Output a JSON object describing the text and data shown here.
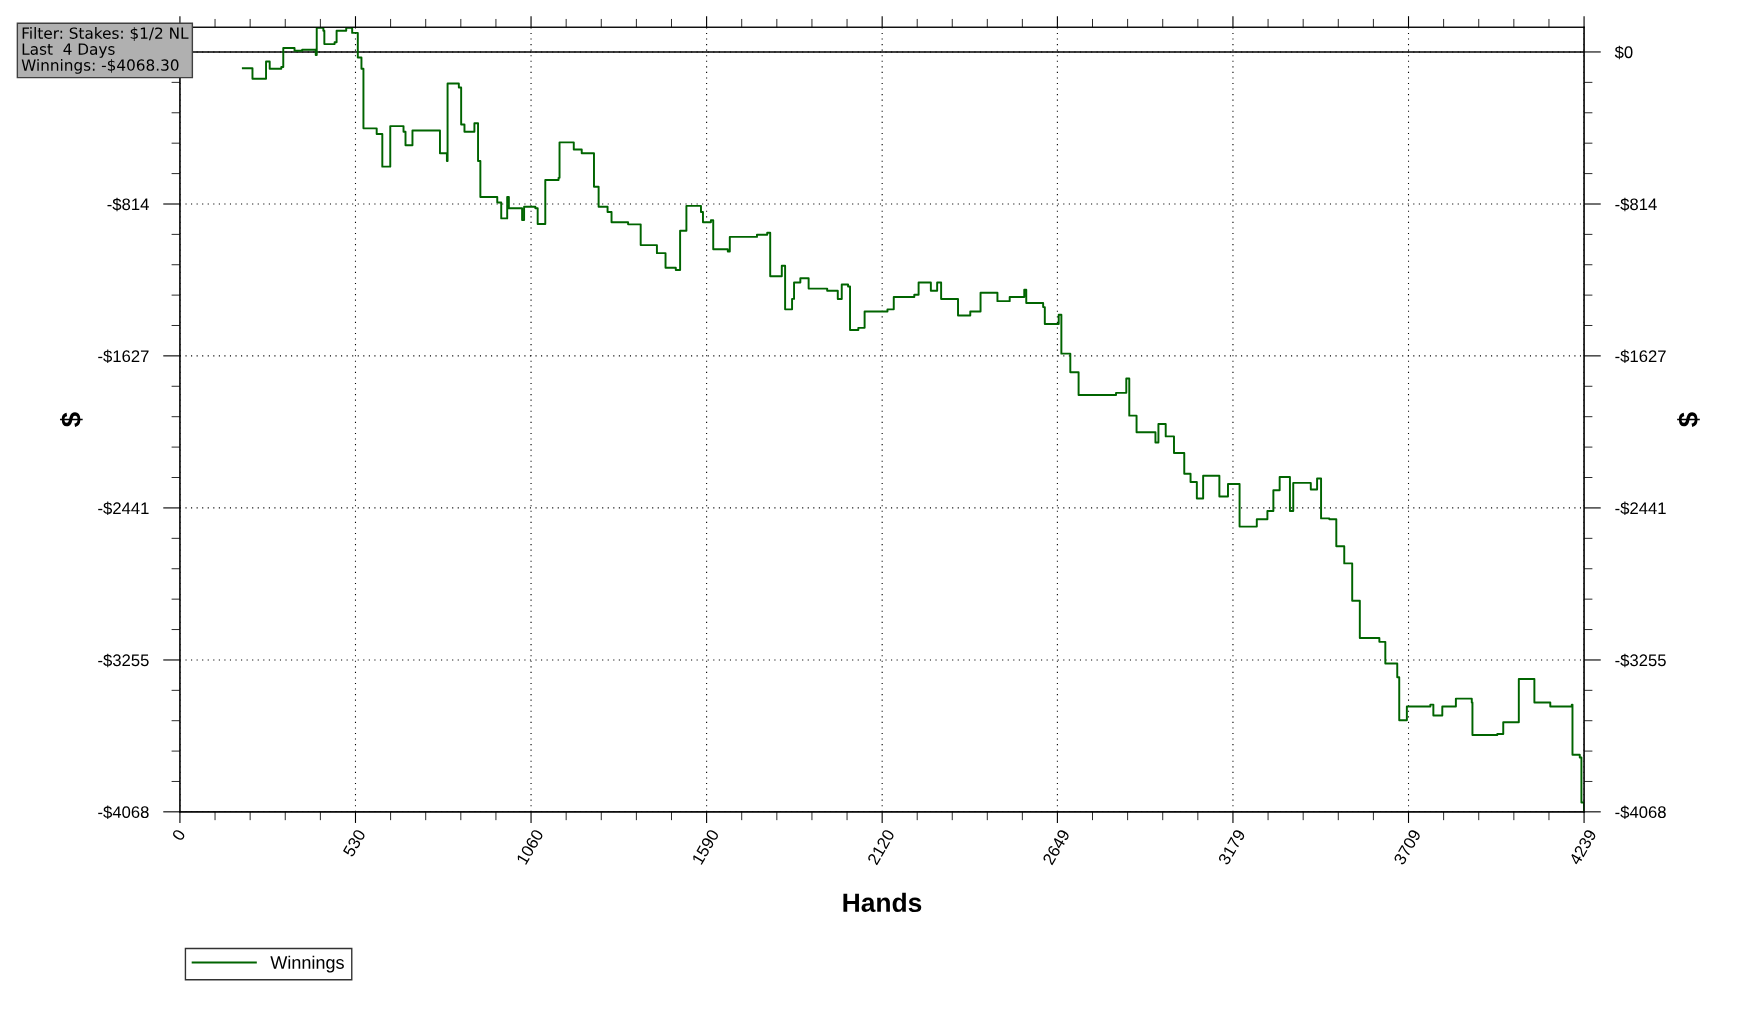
{
  "chart_data": {
    "type": "step",
    "xlabel": "Hands",
    "ylabel": "$",
    "y2label": "$",
    "annotations": [
      "Filter: Stakes: $1/2 NL",
      "Last  4 Days",
      "Winnings: -$4068.30"
    ],
    "xlim": [
      0,
      4239
    ],
    "xticks": [
      0,
      530,
      1060,
      1590,
      2120,
      2649,
      3179,
      3709,
      4239
    ],
    "ylim": [
      -4068,
      132
    ],
    "yticks": [
      {
        "value": 0,
        "label": null
      },
      {
        "value": -814,
        "label": "-$814"
      },
      {
        "value": -1627,
        "label": "-$1627"
      },
      {
        "value": -2441,
        "label": "-$2441"
      },
      {
        "value": -3255,
        "label": "-$3255"
      },
      {
        "value": -4068,
        "label": "-$4068"
      }
    ],
    "y2lim": [
      -4068,
      132
    ],
    "y2ticks": [
      {
        "value": 0,
        "label": "$0"
      },
      {
        "value": -814,
        "label": "-$814"
      },
      {
        "value": -1627,
        "label": "-$1627"
      },
      {
        "value": -2441,
        "label": "-$2441"
      },
      {
        "value": -3255,
        "label": "-$3255"
      },
      {
        "value": -4068,
        "label": "-$4068"
      }
    ],
    "grid": true,
    "legend": "bottom left",
    "marker": "none",
    "line_style": "solid",
    "ref_lines": [
      {
        "axis": "y",
        "value": 0,
        "color": "#000000",
        "line_style": "solid"
      }
    ],
    "series": [
      {
        "name": "Winnings",
        "color": "#006400",
        "x": [
          190,
          219,
          254,
          260,
          271,
          306,
          312,
          346,
          369,
          410,
          413,
          433,
          436,
          467,
          473,
          502,
          520,
          537,
          537,
          548,
          554,
          594,
          611,
          628,
          635,
          675,
          681,
          698,
          702,
          774,
          785,
          806,
          808,
          842,
          849,
          859,
          889,
          900,
          907,
          958,
          970,
          988,
          993,
          1033,
          1039,
          1073,
          1080,
          1097,
          1103,
          1143,
          1146,
          1189,
          1213,
          1242,
          1250,
          1264,
          1291,
          1303,
          1353,
          1391,
          1440,
          1466,
          1497,
          1510,
          1529,
          1573,
          1579,
          1603,
          1610,
          1654,
          1660,
          1742,
          1773,
          1782,
          1817,
          1827,
          1848,
          1854,
          1873,
          1898,
          1954,
          1986,
          1998,
          2017,
          2023,
          2048,
          2067,
          2136,
          2155,
          2217,
          2230,
          2267,
          2286,
          2298,
          2349,
          2386,
          2417,
          2468,
          2505,
          2549,
          2555,
          2606,
          2611,
          2643,
          2653,
          2661,
          2688,
          2713,
          2826,
          2857,
          2866,
          2888,
          2945,
          2954,
          2976,
          3001,
          3032,
          3051,
          3070,
          3089,
          3138,
          3164,
          3195,
          3199,
          3251,
          3283,
          3301,
          3320,
          3351,
          3361,
          3414,
          3433,
          3445,
          3470,
          3491,
          3515,
          3539,
          3562,
          3621,
          3639,
          3675,
          3681,
          3704,
          3775,
          3784,
          3805,
          3811,
          3852,
          3900,
          3902,
          3977,
          3995,
          4042,
          4042,
          4083,
          4089,
          4137,
          4202,
          4204,
          4226,
          4231,
          4239
        ],
        "values": [
          -87,
          -143,
          -143,
          -51,
          -90,
          -81,
          21,
          6,
          12,
          -16,
          129,
          114,
          42,
          52,
          114,
          129,
          102,
          93,
          -30,
          -90,
          -409,
          -439,
          -614,
          -614,
          -397,
          -427,
          -499,
          -499,
          -421,
          -421,
          -542,
          -584,
          -169,
          -190,
          -388,
          -427,
          -382,
          -584,
          -776,
          -806,
          -891,
          -776,
          -837,
          -900,
          -829,
          -837,
          -921,
          -921,
          -686,
          -674,
          -484,
          -522,
          -542,
          -542,
          -722,
          -829,
          -857,
          -912,
          -923,
          -1034,
          -1077,
          -1155,
          -1167,
          -957,
          -824,
          -857,
          -912,
          -901,
          -1056,
          -1068,
          -990,
          -979,
          -968,
          -1201,
          -1145,
          -1378,
          -1322,
          -1234,
          -1211,
          -1267,
          -1278,
          -1323,
          -1245,
          -1256,
          -1489,
          -1477,
          -1389,
          -1378,
          -1312,
          -1300,
          -1234,
          -1278,
          -1234,
          -1323,
          -1411,
          -1389,
          -1289,
          -1334,
          -1312,
          -1273,
          -1344,
          -1366,
          -1456,
          -1456,
          -1407,
          -1615,
          -1715,
          -1836,
          -1825,
          -1748,
          -1947,
          -2036,
          -2091,
          -1992,
          -2058,
          -2147,
          -2258,
          -2302,
          -2391,
          -2269,
          -2380,
          -2313,
          -2313,
          -2541,
          -2502,
          -2457,
          -2346,
          -2275,
          -2457,
          -2307,
          -2342,
          -2284,
          -2497,
          -2502,
          -2646,
          -2738,
          -2938,
          -3137,
          -3158,
          -3274,
          -3347,
          -3578,
          -3504,
          -3494,
          -3552,
          -3552,
          -3504,
          -3462,
          -3483,
          -3657,
          -3651,
          -3588,
          -3567,
          -3357,
          -3357,
          -3483,
          -3504,
          -3494,
          -3762,
          -3777,
          -4018,
          -4068
        ]
      }
    ]
  }
}
